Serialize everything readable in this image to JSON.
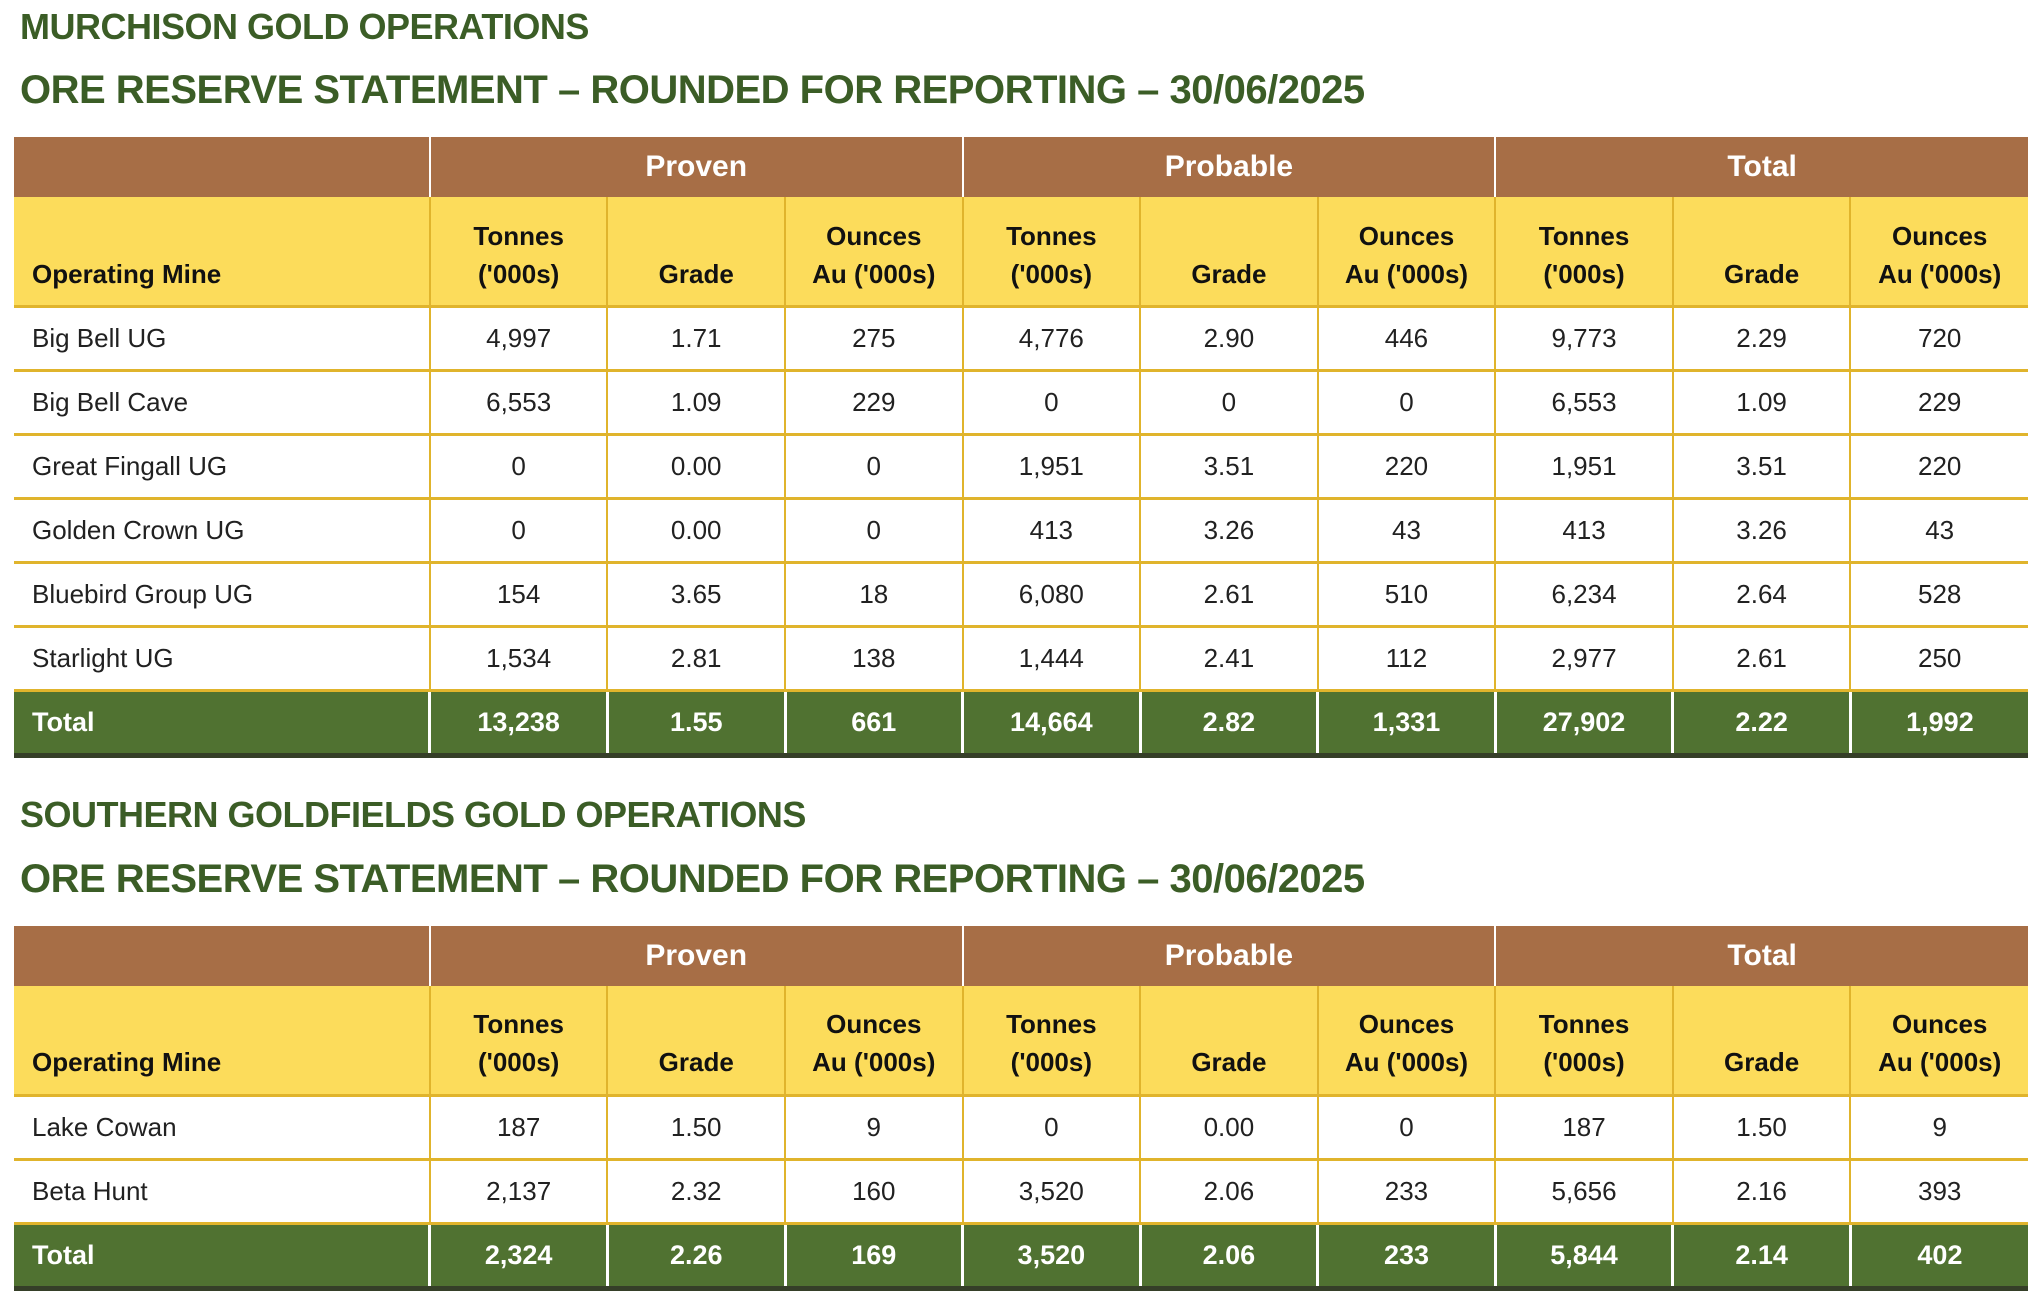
{
  "colors": {
    "title_green": "#3B5D26",
    "group_header_brown": "#A76E46",
    "column_header_yellow": "#FCDC5B",
    "grid_gold": "#E0B42C",
    "total_row_green": "#507231",
    "table_bottom_border": "#353F28"
  },
  "sections": [
    {
      "title": "MURCHISON GOLD OPERATIONS",
      "statement": "ORE RESERVE STATEMENT – ROUNDED FOR REPORTING – 30/06/2025",
      "table": {
        "first_col_header": "Operating Mine",
        "groups": [
          "Proven",
          "Probable",
          "Total"
        ],
        "metric_headers": [
          [
            "Tonnes",
            "('000s)"
          ],
          [
            "Grade"
          ],
          [
            "Ounces",
            "Au ('000s)"
          ]
        ],
        "rows": [
          {
            "mine": "Big Bell UG",
            "values": [
              "4,997",
              "1.71",
              "275",
              "4,776",
              "2.90",
              "446",
              "9,773",
              "2.29",
              "720"
            ]
          },
          {
            "mine": "Big Bell Cave",
            "values": [
              "6,553",
              "1.09",
              "229",
              "0",
              "0",
              "0",
              "6,553",
              "1.09",
              "229"
            ]
          },
          {
            "mine": "Great Fingall UG",
            "values": [
              "0",
              "0.00",
              "0",
              "1,951",
              "3.51",
              "220",
              "1,951",
              "3.51",
              "220"
            ]
          },
          {
            "mine": "Golden Crown UG",
            "values": [
              "0",
              "0.00",
              "0",
              "413",
              "3.26",
              "43",
              "413",
              "3.26",
              "43"
            ]
          },
          {
            "mine": "Bluebird Group UG",
            "values": [
              "154",
              "3.65",
              "18",
              "6,080",
              "2.61",
              "510",
              "6,234",
              "2.64",
              "528"
            ]
          },
          {
            "mine": "Starlight UG",
            "values": [
              "1,534",
              "2.81",
              "138",
              "1,444",
              "2.41",
              "112",
              "2,977",
              "2.61",
              "250"
            ]
          }
        ],
        "total_row": {
          "label": "Total",
          "values": [
            "13,238",
            "1.55",
            "661",
            "14,664",
            "2.82",
            "1,331",
            "27,902",
            "2.22",
            "1,992"
          ]
        }
      }
    },
    {
      "title": "SOUTHERN GOLDFIELDS GOLD OPERATIONS",
      "statement": "ORE RESERVE STATEMENT – ROUNDED FOR REPORTING – 30/06/2025",
      "table": {
        "first_col_header": "Operating Mine",
        "groups": [
          "Proven",
          "Probable",
          "Total"
        ],
        "metric_headers": [
          [
            "Tonnes",
            "('000s)"
          ],
          [
            "Grade"
          ],
          [
            "Ounces",
            "Au ('000s)"
          ]
        ],
        "rows": [
          {
            "mine": "Lake Cowan",
            "values": [
              "187",
              "1.50",
              "9",
              "0",
              "0.00",
              "0",
              "187",
              "1.50",
              "9"
            ]
          },
          {
            "mine": "Beta Hunt",
            "values": [
              "2,137",
              "2.32",
              "160",
              "3,520",
              "2.06",
              "233",
              "5,656",
              "2.16",
              "393"
            ]
          }
        ],
        "total_row": {
          "label": "Total",
          "values": [
            "2,324",
            "2.26",
            "169",
            "3,520",
            "2.06",
            "233",
            "5,844",
            "2.14",
            "402"
          ]
        }
      }
    }
  ]
}
